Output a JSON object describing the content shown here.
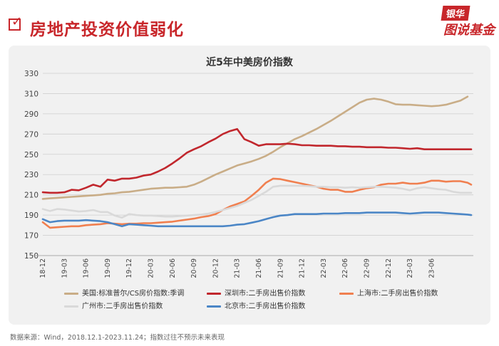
{
  "header": {
    "title": "房地产投资价值弱化",
    "brand_top": "银华",
    "brand_bottom": "图说基金"
  },
  "chart_data": {
    "type": "line",
    "title": "近5年中美房价指数",
    "xlabel": "",
    "ylabel": "",
    "ylim": [
      150,
      330
    ],
    "yticks": [
      150,
      170,
      190,
      210,
      230,
      250,
      270,
      290,
      310,
      330
    ],
    "xlim": [
      0,
      59.8
    ],
    "xtick_labels": [
      "18-12",
      "19-03",
      "19-06",
      "19-09",
      "19-12",
      "20-03",
      "20-06",
      "20-09",
      "20-12",
      "21-03",
      "21-06",
      "21-09",
      "21-12",
      "22-03",
      "22-06",
      "22-09",
      "22-12",
      "23-03",
      "23-06"
    ],
    "grid": true,
    "legend_position": "bottom",
    "series": [
      {
        "name": "美国:标准普尔/CS房价指数:季调",
        "color": "#c9ad87",
        "x": [
          0,
          1,
          2,
          3,
          4,
          5,
          6,
          7,
          8,
          9,
          10,
          11,
          12,
          13,
          14,
          15,
          16,
          17,
          18,
          19,
          20,
          21,
          22,
          23,
          24,
          25,
          26,
          27,
          28,
          29,
          30,
          31,
          32,
          33,
          34,
          35,
          36,
          37,
          38,
          39,
          40,
          41,
          42,
          43,
          44,
          45,
          46,
          47,
          48,
          49,
          50,
          51,
          52,
          53,
          54,
          55,
          56,
          57,
          58,
          59
        ],
        "values": [
          206,
          206.5,
          207,
          207.5,
          208,
          208.5,
          209,
          209.5,
          210,
          211,
          211.5,
          212.5,
          213,
          214,
          215,
          216,
          216.5,
          217,
          217,
          217.5,
          218,
          220,
          223,
          226.5,
          230,
          233,
          236,
          239,
          241,
          243,
          245.5,
          248.5,
          252.5,
          257,
          261,
          265,
          268,
          271.5,
          275,
          279,
          283,
          287.5,
          292,
          296.5,
          301,
          304,
          305,
          304,
          302,
          299.5,
          299,
          299,
          298.5,
          298,
          297.5,
          298,
          299,
          301,
          303,
          307
        ]
      },
      {
        "name": "深圳市:二手房出售价指数",
        "color": "#c1272d",
        "x": [
          0,
          1,
          2,
          3,
          4,
          5,
          6,
          7,
          8,
          9,
          10,
          11,
          12,
          13,
          14,
          15,
          16,
          17,
          18,
          19,
          20,
          21,
          22,
          23,
          24,
          25,
          26,
          27,
          28,
          29,
          30,
          31,
          32,
          33,
          34,
          35,
          36,
          37,
          38,
          39,
          40,
          41,
          42,
          43,
          44,
          45,
          46,
          47,
          48,
          49,
          50,
          51,
          52,
          53,
          54,
          55,
          56,
          57,
          58,
          59,
          59.5
        ],
        "values": [
          212.5,
          212,
          212,
          212.5,
          215,
          214.5,
          217,
          220,
          218,
          225,
          224,
          226,
          226,
          227,
          229,
          230,
          233,
          236.5,
          241,
          246,
          251.5,
          255,
          258,
          262,
          265.5,
          270,
          273,
          275,
          265,
          262,
          258.5,
          260,
          260,
          260,
          260.5,
          260,
          259,
          259,
          258.5,
          258.5,
          258.5,
          258,
          258,
          257.5,
          257.5,
          257,
          257,
          257,
          256.5,
          256.5,
          256,
          255.5,
          256,
          255,
          255,
          255,
          255,
          255,
          255,
          255,
          255
        ]
      },
      {
        "name": "上海市:二手房出售价指数",
        "color": "#f07f4f",
        "x": [
          0,
          1,
          2,
          3,
          4,
          5,
          6,
          7,
          8,
          9,
          10,
          11,
          12,
          13,
          14,
          15,
          16,
          17,
          18,
          19,
          20,
          21,
          22,
          23,
          24,
          25,
          26,
          27,
          28,
          29,
          30,
          31,
          32,
          33,
          34,
          35,
          36,
          37,
          38,
          39,
          40,
          41,
          42,
          43,
          44,
          45,
          46,
          47,
          48,
          49,
          50,
          51,
          52,
          53,
          54,
          55,
          56,
          57,
          58,
          59,
          59.5
        ],
        "values": [
          183,
          177.5,
          178,
          178.5,
          179,
          179,
          180,
          180.5,
          181,
          182,
          181.5,
          181,
          181.5,
          181.5,
          182,
          182,
          182.5,
          183,
          183.5,
          184.5,
          185.5,
          186.5,
          188,
          189,
          191,
          195,
          198.5,
          201,
          203.5,
          209,
          215,
          222,
          226,
          225.5,
          224,
          222.5,
          221,
          219.5,
          218,
          216,
          215,
          215,
          213,
          213,
          215,
          216.5,
          217.5,
          220,
          221,
          221,
          222,
          221,
          221,
          222,
          224,
          224,
          223,
          223.5,
          223.5,
          222,
          220
        ]
      },
      {
        "name": "广州市:二手房出售价指数",
        "color": "#d9d9d9",
        "x": [
          0,
          1,
          2,
          3,
          4,
          5,
          6,
          7,
          8,
          9,
          10,
          11,
          12,
          13,
          14,
          15,
          16,
          17,
          18,
          19,
          20,
          21,
          22,
          23,
          24,
          25,
          26,
          27,
          28,
          29,
          30,
          31,
          32,
          33,
          34,
          35,
          36,
          37,
          38,
          39,
          40,
          41,
          42,
          43,
          44,
          45,
          46,
          47,
          48,
          49,
          50,
          51,
          52,
          53,
          54,
          55,
          56,
          57,
          58,
          59,
          59.5
        ],
        "values": [
          196,
          194,
          196,
          195.5,
          194.5,
          193.5,
          194,
          195,
          193,
          193,
          189.5,
          187.5,
          191,
          190,
          189.5,
          189.5,
          189,
          188.5,
          188.5,
          189,
          189.5,
          190,
          190.5,
          191.5,
          193,
          195,
          197,
          199,
          202,
          205,
          209,
          213,
          218,
          219,
          219,
          219,
          219,
          218.5,
          218,
          218,
          217.5,
          217.5,
          217,
          217.5,
          217,
          217.5,
          218,
          218,
          217.5,
          217,
          216,
          214.5,
          216.5,
          217.5,
          216.5,
          215.5,
          215,
          213,
          212,
          212,
          212
        ]
      },
      {
        "name": "北京市:二手房出售价指数",
        "color": "#4b86c6",
        "x": [
          0,
          1,
          2,
          3,
          4,
          5,
          6,
          7,
          8,
          9,
          10,
          11,
          12,
          13,
          14,
          15,
          16,
          17,
          18,
          19,
          20,
          21,
          22,
          23,
          24,
          25,
          26,
          27,
          28,
          29,
          30,
          31,
          32,
          33,
          34,
          35,
          36,
          37,
          38,
          39,
          40,
          41,
          42,
          43,
          44,
          45,
          46,
          47,
          48,
          49,
          50,
          51,
          52,
          53,
          54,
          55,
          56,
          57,
          58,
          59,
          59.5
        ],
        "values": [
          186,
          183,
          184,
          184.5,
          184.5,
          184.5,
          185,
          184.5,
          184,
          183,
          181,
          179,
          181,
          180.5,
          180,
          179.5,
          179,
          179,
          179,
          179,
          179,
          179,
          179,
          179,
          179,
          179,
          179.5,
          180.5,
          181,
          182.5,
          184,
          186,
          188,
          189.5,
          190,
          191,
          191,
          191,
          191,
          191.5,
          191.5,
          191.5,
          192,
          192,
          192,
          192.5,
          192.5,
          192.5,
          192.5,
          192.5,
          192,
          191.5,
          192,
          192.5,
          192.5,
          192.5,
          192,
          191.5,
          191,
          190.5,
          190
        ]
      }
    ]
  },
  "legend": {
    "items": [
      "美国:标准普尔/CS房价指数:季调",
      "深圳市:二手房出售价指数",
      "上海市:二手房出售价指数",
      "广州市:二手房出售价指数",
      "北京市:二手房出售价指数"
    ]
  },
  "footer": {
    "source": "数据来源：Wind，2018.12.1-2023.11.24；指数过往不预示未来表现"
  }
}
